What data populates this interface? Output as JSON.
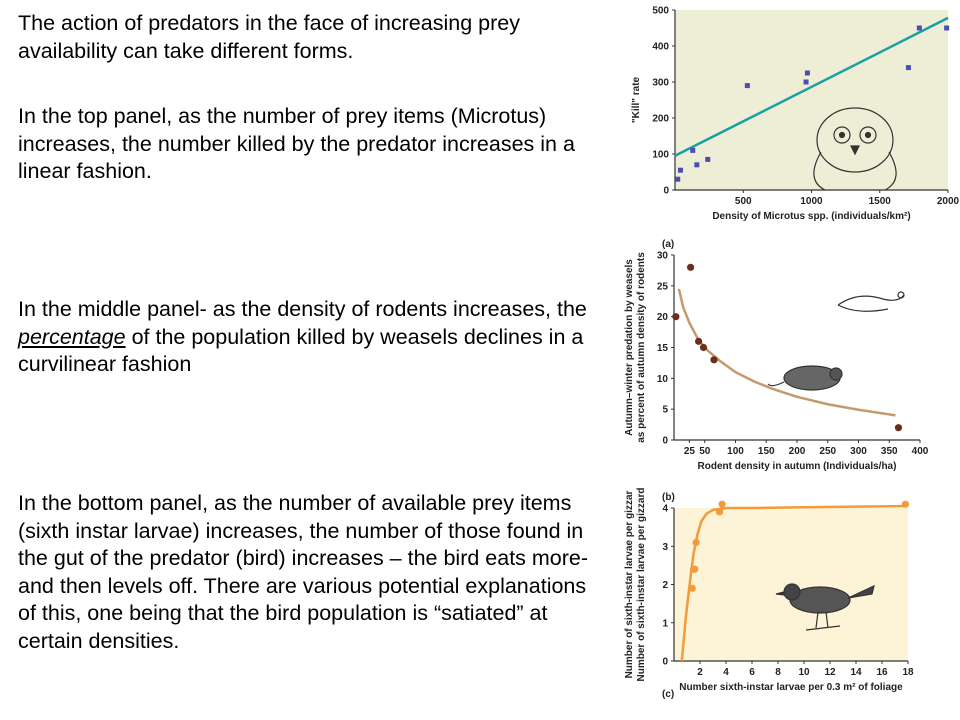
{
  "text": {
    "p1": "The action of predators in the face of increasing prey availability can take different forms.",
    "p2": "In the top panel, as the number of prey items (Microtus) increases, the number killed by the predator increases in a linear fashion.",
    "p3_a": "In the middle panel- as the density of rodents increases, the ",
    "p3_b": "percentage",
    "p3_c": " of the population killed by weasels declines in a curvilinear fashion",
    "p4": "In the bottom panel, as the number of available prey items (sixth instar larvae) increases, the number of those found in the gut of the predator (bird) increases – the bird eats more- and then levels off.   There are various potential explanations of this, one being that the bird population is “satiated” at certain densities."
  },
  "chart_data": [
    {
      "type": "scatter",
      "panel_label": "",
      "title": "",
      "xlabel": "Density of Microtus spp. (individuals/km²)",
      "ylabel": "\"Kill\" rate",
      "xlim": [
        0,
        2000
      ],
      "ylim": [
        0,
        500
      ],
      "xticks": [
        500,
        1000,
        1500,
        2000
      ],
      "yticks": [
        0,
        100,
        200,
        300,
        400,
        500
      ],
      "grid": false,
      "points": {
        "x": [
          20,
          40,
          130,
          160,
          240,
          530,
          960,
          970,
          1710,
          1790,
          1990
        ],
        "y": [
          30,
          55,
          110,
          70,
          85,
          290,
          300,
          325,
          340,
          450,
          450
        ]
      },
      "trend": {
        "x": [
          0,
          2000
        ],
        "y": [
          95,
          478
        ]
      },
      "colors": {
        "background": "#eeeed6",
        "points": "#4b4fb5",
        "line": "#1aa0a0"
      }
    },
    {
      "type": "scatter",
      "panel_label": "(a)",
      "title": "",
      "xlabel": "Rodent density in autumn (Individuals/ha)",
      "ylabel": "Autumn–winter predation by weasels as percent of autumn density of rodents",
      "xlim": [
        0,
        400
      ],
      "ylim": [
        0,
        30
      ],
      "xticks": [
        50,
        100,
        150,
        200,
        250,
        300,
        350,
        400
      ],
      "extra_xtick_labels": [
        {
          "x": 25,
          "label": "25"
        }
      ],
      "yticks": [
        0,
        5,
        10,
        15,
        20,
        25,
        30
      ],
      "grid": false,
      "points": {
        "x": [
          3,
          27,
          40,
          48,
          65,
          365
        ],
        "y": [
          20,
          28,
          16,
          15,
          13,
          2
        ]
      },
      "curve": {
        "x": [
          8,
          15,
          25,
          40,
          55,
          75,
          100,
          130,
          160,
          200,
          250,
          300,
          360
        ],
        "y": [
          24.5,
          21.5,
          19,
          16.2,
          14.5,
          12.8,
          11,
          9.5,
          8.3,
          7,
          5.8,
          4.9,
          4
        ]
      },
      "colors": {
        "background": "#ffffff",
        "points": "#6b2e1c",
        "line": "#c49a6c"
      }
    },
    {
      "type": "line",
      "panel_label": "(b)",
      "title": "",
      "xlabel": "Number sixth-instar larvae per 0.3 m² of foliage",
      "ylabel": "Number of sixth-instar larvae per gizzard",
      "xlim": [
        0,
        18
      ],
      "ylim": [
        0,
        4
      ],
      "xticks": [
        2,
        4,
        6,
        8,
        10,
        12,
        14,
        16,
        18
      ],
      "yticks": [
        0,
        1,
        2,
        3,
        4
      ],
      "grid": false,
      "points": {
        "x": [
          1.4,
          1.5,
          1.6,
          1.7,
          3.5,
          3.7,
          17.8
        ],
        "y": [
          1.9,
          2.4,
          2.4,
          3.1,
          3.9,
          4.1,
          4.1
        ]
      },
      "curve": {
        "x": [
          0.6,
          0.9,
          1.2,
          1.5,
          1.8,
          2.1,
          2.5,
          3.0,
          4.0,
          6.0,
          10,
          18
        ],
        "y": [
          0,
          1.1,
          2.0,
          2.8,
          3.3,
          3.65,
          3.85,
          3.95,
          4.0,
          4.0,
          4.02,
          4.05
        ]
      },
      "colors": {
        "background": "#fdf3d6",
        "points": "#f39a3a",
        "line": "#f39a3a"
      }
    }
  ],
  "footer_caption": "(c)"
}
